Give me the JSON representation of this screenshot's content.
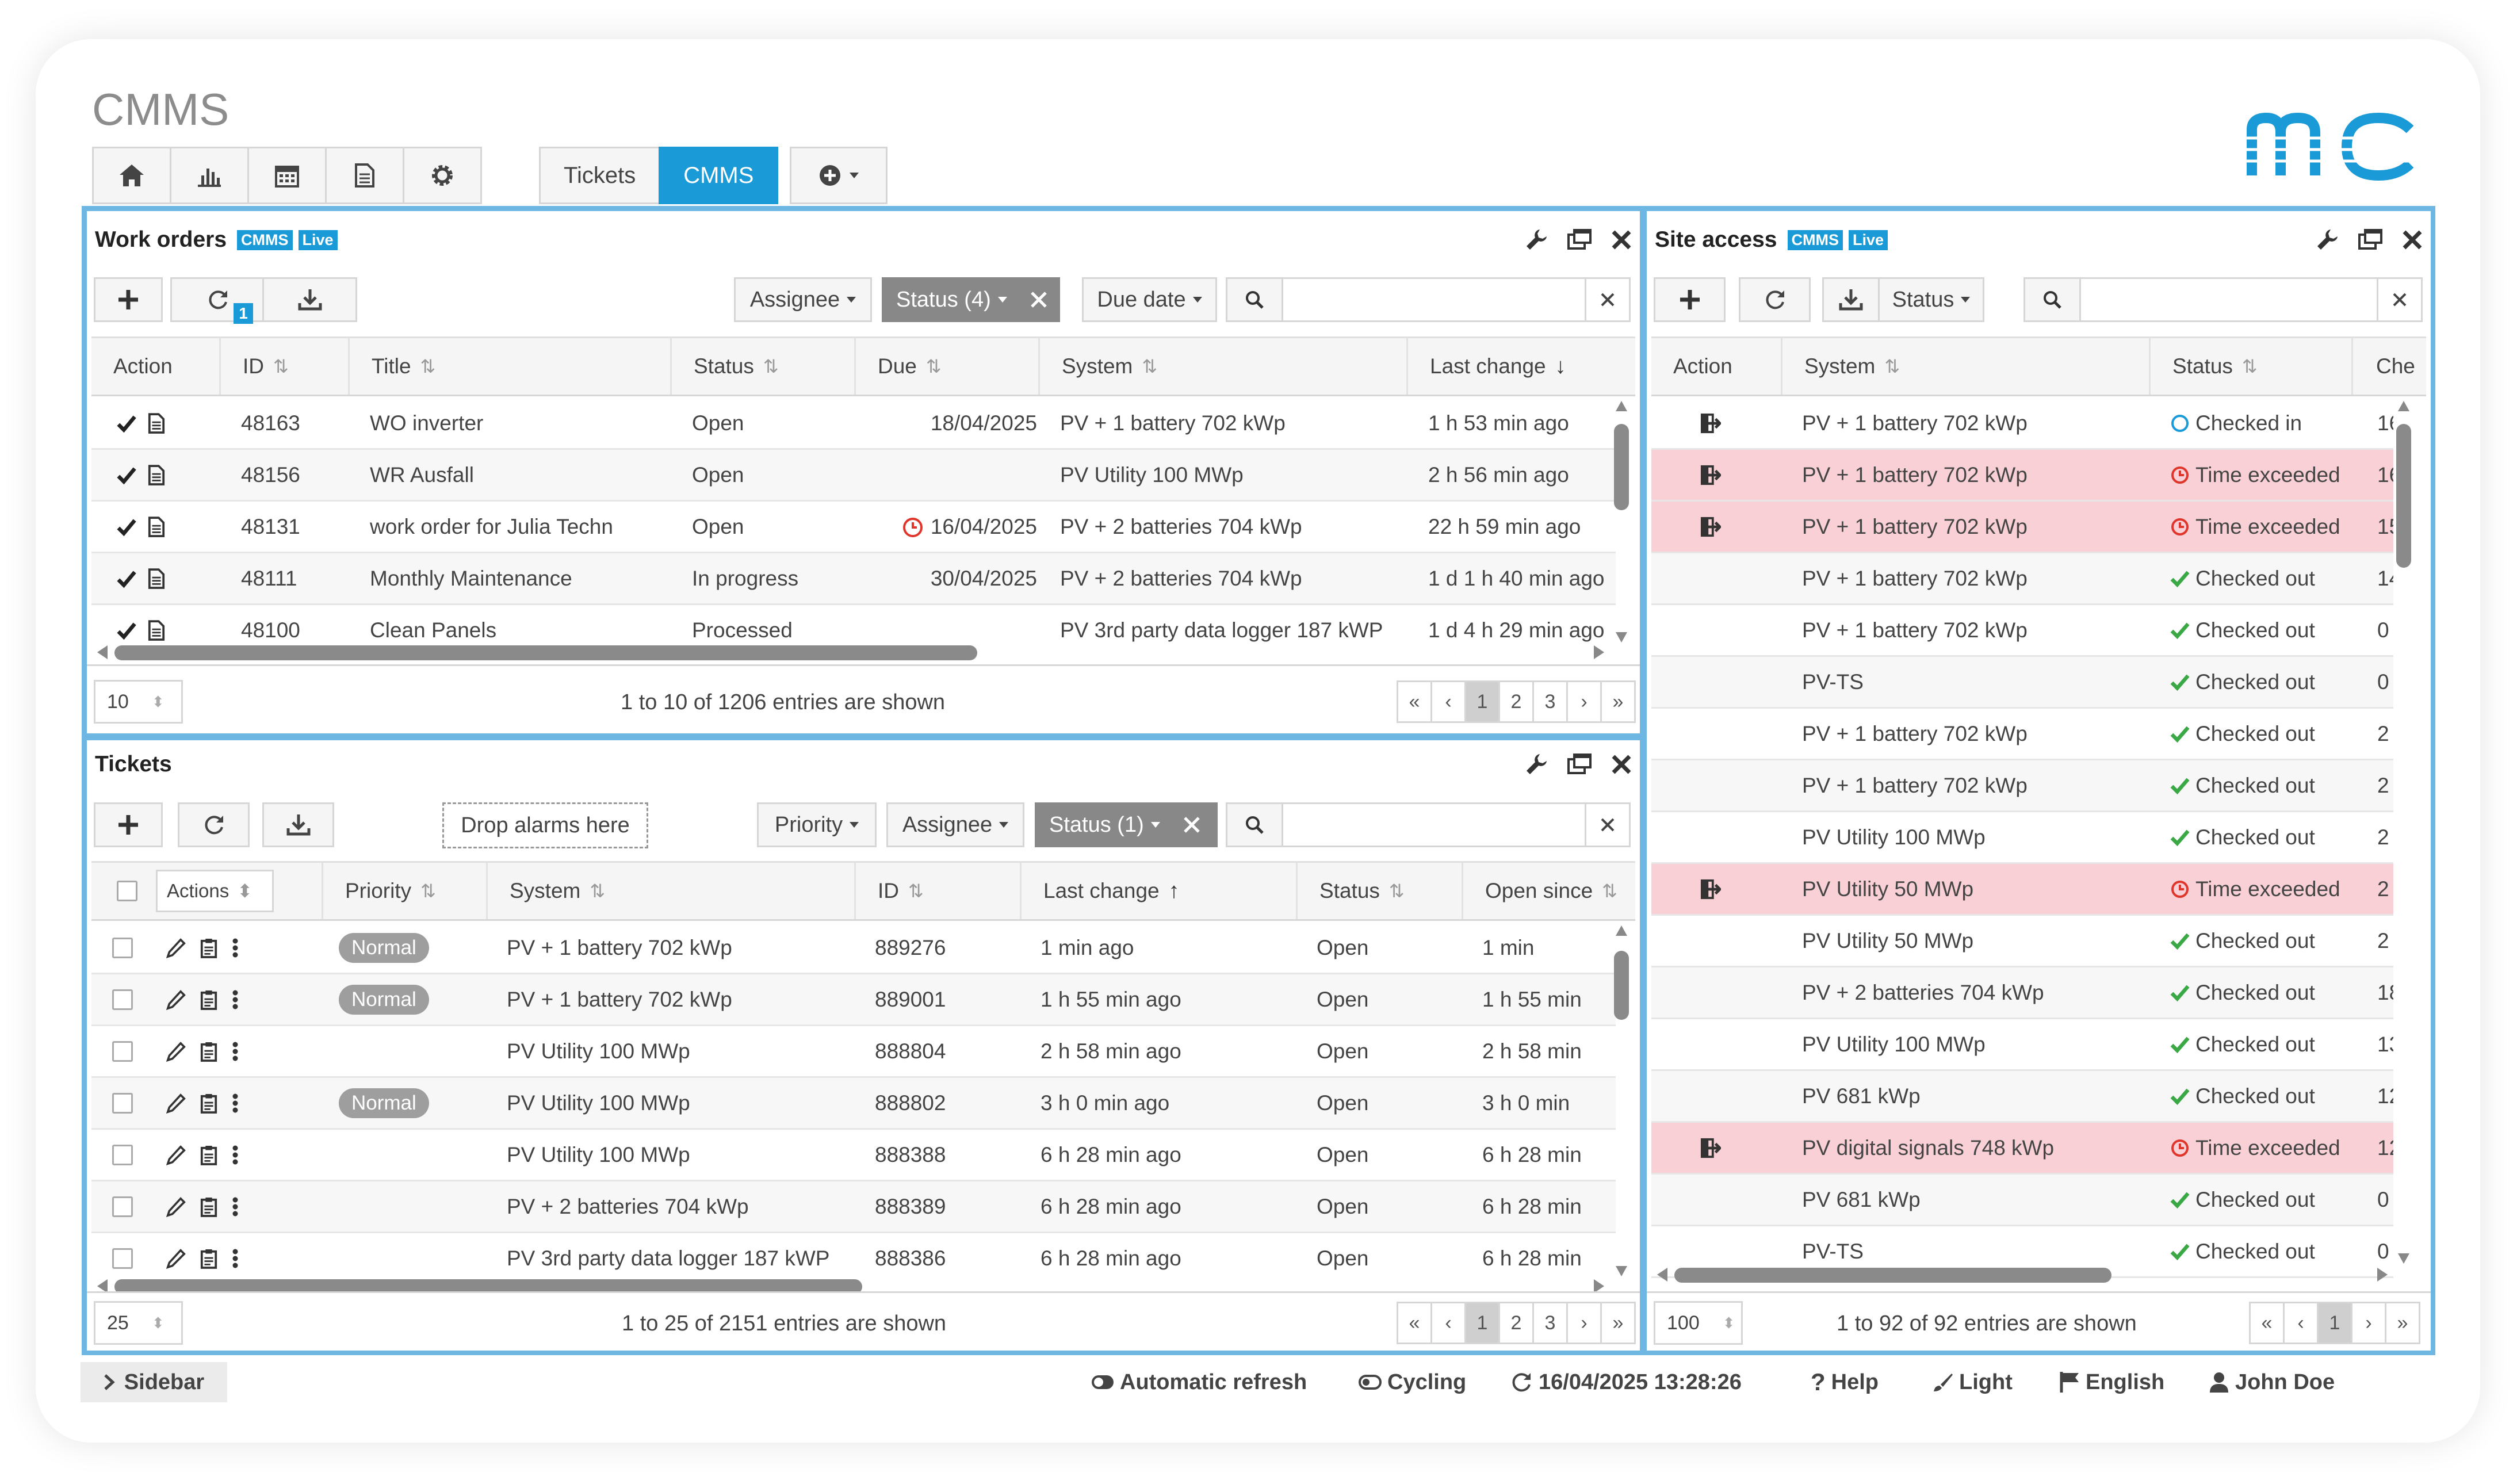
{
  "app": {
    "title": "CMMS"
  },
  "tabs": {
    "tickets": "Tickets",
    "cmms": "CMMS"
  },
  "work_orders": {
    "title": "Work orders",
    "badge_cmms": "CMMS",
    "badge_live": "Live",
    "filters": {
      "assignee": "Assignee",
      "status": "Status (4)",
      "due_date": "Due date"
    },
    "refresh_badge": "1",
    "columns": [
      "Action",
      "ID",
      "Title",
      "Status",
      "Due",
      "System",
      "Last change"
    ],
    "rows": [
      {
        "id": "48163",
        "title": "WO inverter",
        "status": "Open",
        "due": "18/04/2025",
        "overdue": false,
        "system": "PV + 1 battery 702 kWp",
        "last_change": "1 h 53 min ago"
      },
      {
        "id": "48156",
        "title": "WR Ausfall",
        "status": "Open",
        "due": "",
        "overdue": false,
        "system": "PV Utility 100 MWp",
        "last_change": "2 h 56 min ago"
      },
      {
        "id": "48131",
        "title": "work order for Julia Techn",
        "status": "Open",
        "due": "16/04/2025",
        "overdue": true,
        "system": "PV + 2 batteries 704 kWp",
        "last_change": "22 h 59 min ago"
      },
      {
        "id": "48111",
        "title": "Monthly Maintenance",
        "status": "In progress",
        "due": "30/04/2025",
        "overdue": false,
        "system": "PV + 2 batteries 704 kWp",
        "last_change": "1 d 1 h 40 min ago"
      },
      {
        "id": "48100",
        "title": "Clean Panels",
        "status": "Processed",
        "due": "",
        "overdue": false,
        "system": "PV 3rd party data logger 187 kWP",
        "last_change": "1 d 4 h 29 min ago"
      }
    ],
    "page_size": "10",
    "summary": "1 to 10 of 1206 entries are shown",
    "pages": [
      "«",
      "‹",
      "1",
      "2",
      "3",
      "›",
      "»"
    ]
  },
  "tickets": {
    "title": "Tickets",
    "drop_label": "Drop alarms here",
    "filters": {
      "priority": "Priority",
      "assignee": "Assignee",
      "status": "Status (1)"
    },
    "actions_label": "Actions",
    "columns": [
      "Priority",
      "System",
      "ID",
      "Last change",
      "Status",
      "Open since"
    ],
    "rows": [
      {
        "priority": "Normal",
        "system": "PV + 1 battery 702 kWp",
        "id": "889276",
        "last_change": "1 min ago",
        "status": "Open",
        "open_since": "1 min"
      },
      {
        "priority": "Normal",
        "system": "PV + 1 battery 702 kWp",
        "id": "889001",
        "last_change": "1 h 55 min ago",
        "status": "Open",
        "open_since": "1 h 55 min"
      },
      {
        "priority": "",
        "system": "PV Utility 100 MWp",
        "id": "888804",
        "last_change": "2 h 58 min ago",
        "status": "Open",
        "open_since": "2 h 58 min"
      },
      {
        "priority": "Normal",
        "system": "PV Utility 100 MWp",
        "id": "888802",
        "last_change": "3 h 0 min ago",
        "status": "Open",
        "open_since": "3 h 0 min"
      },
      {
        "priority": "",
        "system": "PV Utility 100 MWp",
        "id": "888388",
        "last_change": "6 h 28 min ago",
        "status": "Open",
        "open_since": "6 h 28 min"
      },
      {
        "priority": "",
        "system": "PV + 2 batteries 704 kWp",
        "id": "888389",
        "last_change": "6 h 28 min ago",
        "status": "Open",
        "open_since": "6 h 28 min"
      },
      {
        "priority": "",
        "system": "PV 3rd party data logger 187 kWP",
        "id": "888386",
        "last_change": "6 h 28 min ago",
        "status": "Open",
        "open_since": "6 h 28 min"
      }
    ],
    "page_size": "25",
    "summary": "1 to 25 of 2151 entries are shown",
    "pages": [
      "«",
      "‹",
      "1",
      "2",
      "3",
      "›",
      "»"
    ]
  },
  "site_access": {
    "title": "Site access",
    "badge_cmms": "CMMS",
    "badge_live": "Live",
    "filters": {
      "status": "Status"
    },
    "columns": [
      "Action",
      "System",
      "Status",
      "Che"
    ],
    "rows": [
      {
        "action": true,
        "system": "PV + 1 battery 702 kWp",
        "status": "Checked in",
        "kind": "in",
        "extra": "16",
        "highlight": false
      },
      {
        "action": true,
        "system": "PV + 1 battery 702 kWp",
        "status": "Time exceeded",
        "kind": "te",
        "extra": "16",
        "highlight": true
      },
      {
        "action": true,
        "system": "PV + 1 battery 702 kWp",
        "status": "Time exceeded",
        "kind": "te",
        "extra": "15",
        "highlight": true
      },
      {
        "action": false,
        "system": "PV + 1 battery 702 kWp",
        "status": "Checked out",
        "kind": "out",
        "extra": "14",
        "highlight": false
      },
      {
        "action": false,
        "system": "PV + 1 battery 702 kWp",
        "status": "Checked out",
        "kind": "out",
        "extra": "0",
        "highlight": false
      },
      {
        "action": false,
        "system": "PV-TS",
        "status": "Checked out",
        "kind": "out",
        "extra": "0",
        "highlight": false
      },
      {
        "action": false,
        "system": "PV + 1 battery 702 kWp",
        "status": "Checked out",
        "kind": "out",
        "extra": "2",
        "highlight": false
      },
      {
        "action": false,
        "system": "PV + 1 battery 702 kWp",
        "status": "Checked out",
        "kind": "out",
        "extra": "2",
        "highlight": false
      },
      {
        "action": false,
        "system": "PV Utility 100 MWp",
        "status": "Checked out",
        "kind": "out",
        "extra": "2",
        "highlight": false
      },
      {
        "action": true,
        "system": "PV Utility 50 MWp",
        "status": "Time exceeded",
        "kind": "te",
        "extra": "2",
        "highlight": true
      },
      {
        "action": false,
        "system": "PV Utility 50 MWp",
        "status": "Checked out",
        "kind": "out",
        "extra": "2",
        "highlight": false
      },
      {
        "action": false,
        "system": "PV + 2 batteries 704 kWp",
        "status": "Checked out",
        "kind": "out",
        "extra": "18",
        "highlight": false
      },
      {
        "action": false,
        "system": "PV Utility 100 MWp",
        "status": "Checked out",
        "kind": "out",
        "extra": "13",
        "highlight": false
      },
      {
        "action": false,
        "system": "PV 681 kWp",
        "status": "Checked out",
        "kind": "out",
        "extra": "12",
        "highlight": false
      },
      {
        "action": true,
        "system": "PV digital signals 748 kWp",
        "status": "Time exceeded",
        "kind": "te",
        "extra": "12",
        "highlight": true
      },
      {
        "action": false,
        "system": "PV 681 kWp",
        "status": "Checked out",
        "kind": "out",
        "extra": "0",
        "highlight": false
      },
      {
        "action": false,
        "system": "PV-TS",
        "status": "Checked out",
        "kind": "out",
        "extra": "0",
        "highlight": false
      }
    ],
    "page_size": "100",
    "summary": "1 to 92 of 92 entries are shown",
    "pages": [
      "«",
      "‹",
      "1",
      "›",
      "»"
    ]
  },
  "statusbar": {
    "sidebar": "Sidebar",
    "auto_refresh": "Automatic refresh",
    "cycling": "Cycling",
    "datetime": "16/04/2025 13:28:26",
    "help": "Help",
    "theme": "Light",
    "language": "English",
    "user": "John Doe"
  },
  "colors": {
    "accent": "#1a9ad6",
    "frame": "#6fb7e3",
    "time_exceeded_row": "#f8d0d5",
    "checked_out": "#3aa845",
    "time_exceeded": "#e0352b"
  }
}
